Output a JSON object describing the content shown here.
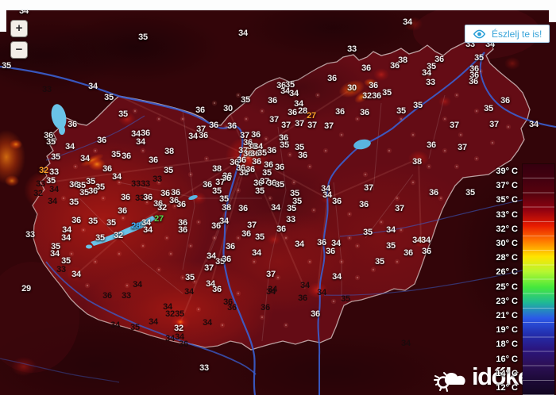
{
  "zoom_controls": {
    "zoom_in_label": "+",
    "zoom_out_label": "−"
  },
  "observe_button": {
    "label": "Észlelj te is!",
    "accent_color": "#36a3d9"
  },
  "logo": {
    "text": "időkép"
  },
  "legend": {
    "entries": [
      {
        "label": "39° C",
        "color": "#35000f"
      },
      {
        "label": "37° C",
        "color": "#44000f"
      },
      {
        "label": "35° C",
        "color": "#5a020e"
      },
      {
        "label": "33° C",
        "color": "#930210"
      },
      {
        "label": "32° C",
        "color": "#e81c00"
      },
      {
        "label": "30° C",
        "color": "#ff7a00"
      },
      {
        "label": "28° C",
        "color": "#ffe400"
      },
      {
        "label": "26° C",
        "color": "#b4f632"
      },
      {
        "label": "25° C",
        "color": "#46e83c"
      },
      {
        "label": "23° C",
        "color": "#1fb996"
      },
      {
        "label": "21° C",
        "color": "#2b59e8"
      },
      {
        "label": "19° C",
        "color": "#2330b0"
      },
      {
        "label": "18° C",
        "color": "#2a1680"
      },
      {
        "label": "16° C",
        "color": "#2d1058"
      },
      {
        "label": "14° C",
        "color": "#1d0a38"
      },
      {
        "label": "12° C",
        "color": "#120620"
      }
    ]
  },
  "map": {
    "label_colors": {
      "w": "#f2ecec",
      "b": "#1c090b",
      "o": "#ffa028",
      "g": "#55d94e",
      "c": "#41b4ff"
    },
    "labels": [
      [
        30,
        14,
        "34",
        "w"
      ],
      [
        180,
        47,
        "35",
        "w"
      ],
      [
        306,
        42,
        "34",
        "w"
      ],
      [
        513,
        28,
        "34",
        "w"
      ],
      [
        592,
        56,
        "33",
        "w"
      ],
      [
        617,
        56,
        "34",
        "w"
      ],
      [
        8,
        83,
        "35",
        "w"
      ],
      [
        443,
        62,
        "33",
        "w"
      ],
      [
        603,
        73,
        "35",
        "w"
      ],
      [
        461,
        86,
        "36",
        "w"
      ],
      [
        507,
        76,
        "38",
        "w"
      ],
      [
        497,
        83,
        "36",
        "w"
      ],
      [
        553,
        75,
        "36",
        "w"
      ],
      [
        543,
        84,
        "35",
        "w"
      ],
      [
        537,
        92,
        "34",
        "w"
      ],
      [
        542,
        104,
        "33",
        "w"
      ],
      [
        597,
        87,
        "36",
        "w"
      ],
      [
        597,
        95,
        "36",
        "w"
      ],
      [
        596,
        103,
        "36",
        "w"
      ],
      [
        636,
        127,
        "36",
        "w"
      ],
      [
        615,
        137,
        "35",
        "w"
      ],
      [
        572,
        158,
        "37",
        "w"
      ],
      [
        622,
        157,
        "37",
        "w"
      ],
      [
        672,
        157,
        "34",
        "w"
      ],
      [
        117,
        109,
        "34",
        "w"
      ],
      [
        59,
        113,
        "33",
        "b"
      ],
      [
        137,
        123,
        "35",
        "w"
      ],
      [
        155,
        144,
        "35",
        "w"
      ],
      [
        91,
        157,
        "36",
        "w"
      ],
      [
        61,
        171,
        "36",
        "w"
      ],
      [
        64,
        179,
        "35",
        "w"
      ],
      [
        88,
        185,
        "34",
        "w"
      ],
      [
        70,
        198,
        "35",
        "w"
      ],
      [
        107,
        200,
        "34",
        "w"
      ],
      [
        128,
        177,
        "36",
        "w"
      ],
      [
        146,
        195,
        "35",
        "w"
      ],
      [
        159,
        197,
        "36",
        "w"
      ],
      [
        135,
        213,
        "36",
        "w"
      ],
      [
        55,
        215,
        "32",
        "o"
      ],
      [
        68,
        217,
        "33",
        "w"
      ],
      [
        171,
        169,
        "34",
        "w"
      ],
      [
        183,
        168,
        "36",
        "w"
      ],
      [
        177,
        179,
        "34",
        "w"
      ],
      [
        213,
        191,
        "38",
        "w"
      ],
      [
        193,
        202,
        "36",
        "w"
      ],
      [
        212,
        215,
        "35",
        "w"
      ],
      [
        252,
        139,
        "36",
        "w"
      ],
      [
        287,
        137,
        "30",
        "w"
      ],
      [
        309,
        126,
        "35",
        "w"
      ],
      [
        343,
        127,
        "36",
        "w"
      ],
      [
        354,
        108,
        "36",
        "w"
      ],
      [
        365,
        107,
        "35",
        "w"
      ],
      [
        359,
        115,
        "34",
        "w"
      ],
      [
        370,
        118,
        "34",
        "w"
      ],
      [
        376,
        131,
        "34",
        "w"
      ],
      [
        368,
        142,
        "36",
        "w"
      ],
      [
        381,
        140,
        "28",
        "w"
      ],
      [
        392,
        146,
        "27",
        "o"
      ],
      [
        428,
        141,
        "36",
        "w"
      ],
      [
        459,
        142,
        "36",
        "w"
      ],
      [
        418,
        99,
        "36",
        "w"
      ],
      [
        443,
        111,
        "30",
        "w"
      ],
      [
        462,
        121,
        "32",
        "w"
      ],
      [
        474,
        121,
        "36",
        "w"
      ],
      [
        470,
        108,
        "36",
        "w"
      ],
      [
        487,
        117,
        "35",
        "w"
      ],
      [
        505,
        140,
        "35",
        "w"
      ],
      [
        526,
        133,
        "35",
        "w"
      ],
      [
        345,
        151,
        "37",
        "w"
      ],
      [
        360,
        158,
        "37",
        "w"
      ],
      [
        377,
        156,
        "37",
        "w"
      ],
      [
        393,
        158,
        "37",
        "w"
      ],
      [
        414,
        159,
        "37",
        "w"
      ],
      [
        269,
        158,
        "36",
        "w"
      ],
      [
        292,
        159,
        "36",
        "w"
      ],
      [
        253,
        163,
        "37",
        "w"
      ],
      [
        243,
        172,
        "34",
        "w"
      ],
      [
        256,
        171,
        "36",
        "w"
      ],
      [
        308,
        171,
        "37",
        "w"
      ],
      [
        322,
        170,
        "36",
        "w"
      ],
      [
        312,
        180,
        "36",
        "w"
      ],
      [
        317,
        185,
        "38",
        "w"
      ],
      [
        325,
        185,
        "34",
        "w"
      ],
      [
        306,
        190,
        "37",
        "w"
      ],
      [
        312,
        194,
        "36",
        "w"
      ],
      [
        321,
        194,
        "36",
        "w"
      ],
      [
        330,
        193,
        "35",
        "w"
      ],
      [
        342,
        190,
        "36",
        "w"
      ],
      [
        357,
        174,
        "36",
        "w"
      ],
      [
        358,
        183,
        "35",
        "w"
      ],
      [
        377,
        186,
        "35",
        "w"
      ],
      [
        381,
        196,
        "36",
        "w"
      ],
      [
        295,
        205,
        "36",
        "w"
      ],
      [
        304,
        202,
        "36",
        "w"
      ],
      [
        323,
        204,
        "36",
        "w"
      ],
      [
        303,
        212,
        "36",
        "w"
      ],
      [
        307,
        218,
        "38",
        "w"
      ],
      [
        315,
        214,
        "36",
        "w"
      ],
      [
        338,
        208,
        "36",
        "w"
      ],
      [
        352,
        211,
        "36",
        "w"
      ],
      [
        336,
        218,
        "35",
        "w"
      ],
      [
        325,
        231,
        "36",
        "w"
      ],
      [
        333,
        229,
        "37",
        "w"
      ],
      [
        342,
        231,
        "36",
        "w"
      ],
      [
        352,
        233,
        "35",
        "w"
      ],
      [
        327,
        241,
        "35",
        "w"
      ],
      [
        371,
        244,
        "35",
        "w"
      ],
      [
        286,
        222,
        "36",
        "w"
      ],
      [
        51,
        232,
        "33",
        "b"
      ],
      [
        64,
        228,
        "35",
        "w"
      ],
      [
        68,
        239,
        "34",
        "b"
      ],
      [
        48,
        244,
        "32",
        "b"
      ],
      [
        66,
        254,
        "34",
        "b"
      ],
      [
        93,
        233,
        "36",
        "w"
      ],
      [
        102,
        234,
        "35",
        "w"
      ],
      [
        114,
        229,
        "35",
        "w"
      ],
      [
        106,
        243,
        "35",
        "w"
      ],
      [
        117,
        241,
        "36",
        "w"
      ],
      [
        126,
        236,
        "35",
        "w"
      ],
      [
        93,
        255,
        "35",
        "w"
      ],
      [
        147,
        223,
        "34",
        "w"
      ],
      [
        171,
        232,
        "33",
        "b"
      ],
      [
        183,
        232,
        "33",
        "b"
      ],
      [
        198,
        226,
        "33",
        "b"
      ],
      [
        158,
        249,
        "36",
        "w"
      ],
      [
        176,
        250,
        "33",
        "b"
      ],
      [
        186,
        249,
        "36",
        "w"
      ],
      [
        208,
        244,
        "36",
        "w"
      ],
      [
        221,
        243,
        "36",
        "w"
      ],
      [
        199,
        257,
        "36",
        "w"
      ],
      [
        219,
        253,
        "36",
        "w"
      ],
      [
        204,
        262,
        "32",
        "w"
      ],
      [
        228,
        258,
        "36",
        "w"
      ],
      [
        154,
        266,
        "36",
        "w"
      ],
      [
        117,
        279,
        "35",
        "w"
      ],
      [
        96,
        278,
        "36",
        "w"
      ],
      [
        140,
        281,
        "35",
        "w"
      ],
      [
        149,
        297,
        "32",
        "w"
      ],
      [
        126,
        300,
        "35",
        "w"
      ],
      [
        171,
        285,
        "28",
        "c"
      ],
      [
        200,
        276,
        "27",
        "g"
      ],
      [
        184,
        281,
        "34",
        "w"
      ],
      [
        186,
        290,
        "34",
        "w"
      ],
      [
        230,
        281,
        "36",
        "w"
      ],
      [
        230,
        290,
        "36",
        "w"
      ],
      [
        38,
        296,
        "33",
        "w"
      ],
      [
        84,
        290,
        "34",
        "w"
      ],
      [
        83,
        300,
        "34",
        "w"
      ],
      [
        70,
        311,
        "35",
        "w"
      ],
      [
        69,
        320,
        "34",
        "w"
      ],
      [
        83,
        329,
        "35",
        "w"
      ],
      [
        77,
        340,
        "33",
        "b"
      ],
      [
        96,
        346,
        "34",
        "w"
      ],
      [
        33,
        364,
        "29",
        "w"
      ],
      [
        273,
        213,
        "38",
        "w"
      ],
      [
        285,
        225,
        "36",
        "w"
      ],
      [
        277,
        230,
        "37",
        "w"
      ],
      [
        261,
        233,
        "36",
        "w"
      ],
      [
        273,
        241,
        "35",
        "w"
      ],
      [
        282,
        251,
        "35",
        "w"
      ],
      [
        285,
        262,
        "38",
        "w"
      ],
      [
        306,
        263,
        "36",
        "w"
      ],
      [
        282,
        279,
        "34",
        "w"
      ],
      [
        272,
        285,
        "36",
        "w"
      ],
      [
        317,
        284,
        "37",
        "w"
      ],
      [
        310,
        295,
        "36",
        "w"
      ],
      [
        327,
        299,
        "35",
        "w"
      ],
      [
        290,
        311,
        "36",
        "w"
      ],
      [
        323,
        319,
        "34",
        "w"
      ],
      [
        266,
        323,
        "34",
        "w"
      ],
      [
        277,
        330,
        "35",
        "w"
      ],
      [
        285,
        327,
        "36",
        "w"
      ],
      [
        263,
        338,
        "37",
        "w"
      ],
      [
        239,
        350,
        "35",
        "w"
      ],
      [
        265,
        358,
        "34",
        "w"
      ],
      [
        273,
        365,
        "36",
        "w"
      ],
      [
        341,
        346,
        "37",
        "w"
      ],
      [
        343,
        365,
        "34",
        "b"
      ],
      [
        374,
        254,
        "35",
        "w"
      ],
      [
        347,
        262,
        "34",
        "w"
      ],
      [
        367,
        263,
        "35",
        "w"
      ],
      [
        366,
        277,
        "33",
        "w"
      ],
      [
        354,
        289,
        "36",
        "w"
      ],
      [
        377,
        308,
        "34",
        "w"
      ],
      [
        410,
        238,
        "34",
        "w"
      ],
      [
        412,
        246,
        "34",
        "w"
      ],
      [
        424,
        254,
        "36",
        "w"
      ],
      [
        458,
        258,
        "36",
        "w"
      ],
      [
        464,
        237,
        "37",
        "w"
      ],
      [
        463,
        293,
        "35",
        "w"
      ],
      [
        405,
        306,
        "36",
        "w"
      ],
      [
        423,
        307,
        "34",
        "w"
      ],
      [
        416,
        317,
        "36",
        "w"
      ],
      [
        424,
        349,
        "34",
        "w"
      ],
      [
        546,
        243,
        "36",
        "w"
      ],
      [
        592,
        243,
        "35",
        "w"
      ],
      [
        503,
        263,
        "37",
        "w"
      ],
      [
        492,
        290,
        "34",
        "w"
      ],
      [
        525,
        303,
        "34",
        "w"
      ],
      [
        536,
        303,
        "34",
        "w"
      ],
      [
        492,
        310,
        "35",
        "w"
      ],
      [
        514,
        319,
        "36",
        "w"
      ],
      [
        537,
        317,
        "36",
        "w"
      ],
      [
        478,
        330,
        "35",
        "w"
      ],
      [
        543,
        183,
        "36",
        "w"
      ],
      [
        525,
        204,
        "38",
        "w"
      ],
      [
        582,
        186,
        "37",
        "w"
      ],
      [
        689,
        238,
        "36",
        "w"
      ],
      [
        688,
        268,
        "36",
        "w"
      ],
      [
        173,
        359,
        "34",
        "b"
      ],
      [
        135,
        373,
        "36",
        "b"
      ],
      [
        159,
        373,
        "33",
        "b"
      ],
      [
        238,
        368,
        "34",
        "b"
      ],
      [
        211,
        387,
        "34",
        "b"
      ],
      [
        214,
        396,
        "32",
        "b"
      ],
      [
        226,
        396,
        "35",
        "b"
      ],
      [
        193,
        406,
        "34",
        "b"
      ],
      [
        145,
        410,
        "34",
        "b"
      ],
      [
        170,
        413,
        "35",
        "b"
      ],
      [
        225,
        414,
        "32",
        "w"
      ],
      [
        214,
        427,
        "34",
        "b"
      ],
      [
        226,
        425,
        "34",
        "b"
      ],
      [
        231,
        434,
        "36",
        "b"
      ],
      [
        261,
        407,
        "34",
        "b"
      ],
      [
        287,
        381,
        "36",
        "b"
      ],
      [
        292,
        388,
        "36",
        "b"
      ],
      [
        341,
        368,
        "34",
        "b"
      ],
      [
        384,
        360,
        "34",
        "b"
      ],
      [
        405,
        369,
        "34",
        "b"
      ],
      [
        381,
        376,
        "36",
        "b"
      ],
      [
        435,
        377,
        "35",
        "b"
      ],
      [
        334,
        388,
        "36",
        "b"
      ],
      [
        397,
        396,
        "36",
        "w"
      ],
      [
        511,
        433,
        "34",
        "b"
      ],
      [
        257,
        464,
        "33",
        "w"
      ]
    ]
  }
}
